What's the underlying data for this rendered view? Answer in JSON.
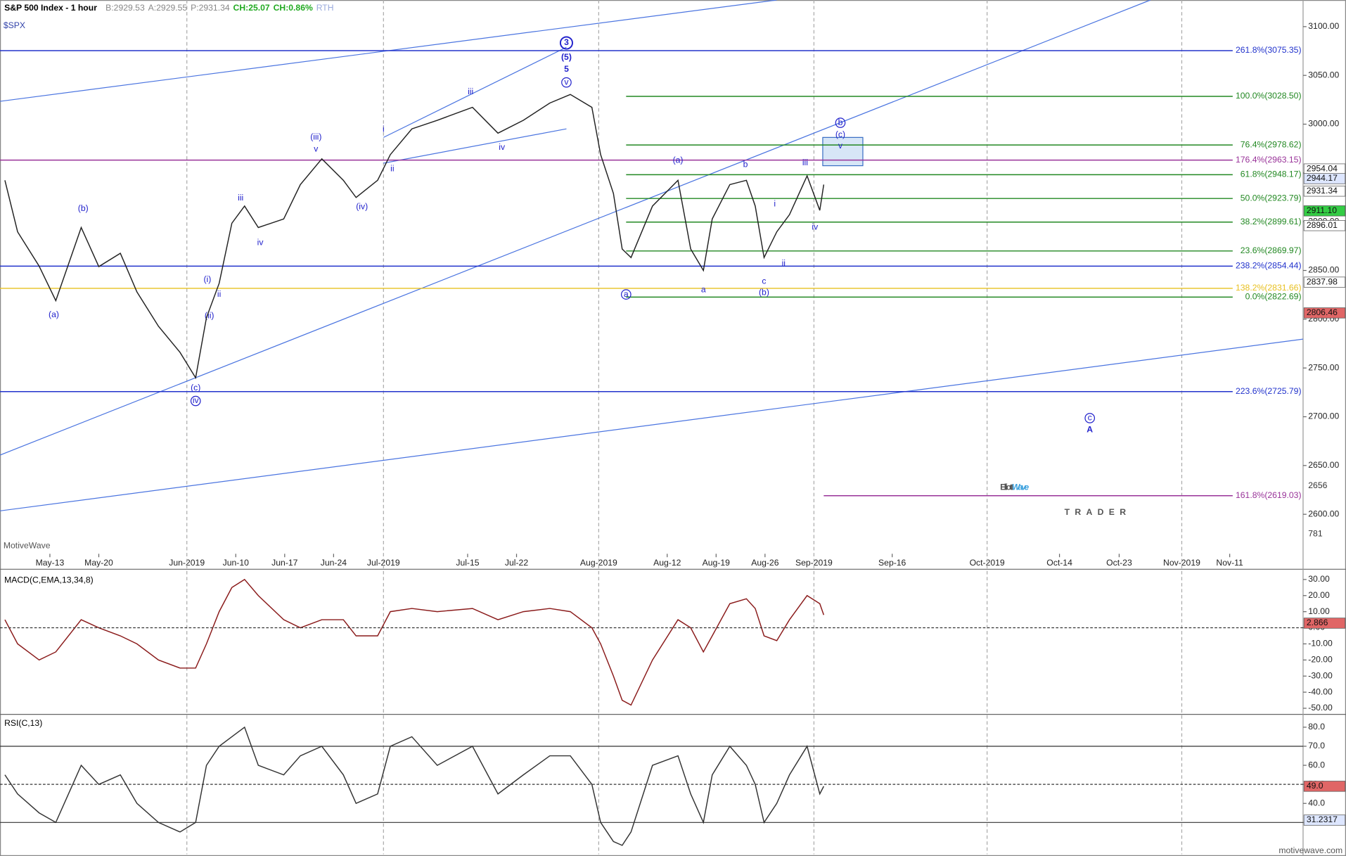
{
  "chart_data": [
    {
      "type": "line",
      "title": "S&P 500 Index - 1 hour",
      "symbol": "$SPX",
      "watermark": "MotiveWave",
      "quote": [
        {
          "text": "B:2929.53",
          "color": "#888888"
        },
        {
          "text": "A:2929.55",
          "color": "#888888"
        },
        {
          "text": "P:2931.34",
          "color": "#888888"
        },
        {
          "text": "CH:25.07",
          "color": "#22aa22"
        },
        {
          "text": "CH:0.86%",
          "color": "#22aa22"
        },
        {
          "text": "RTH",
          "color": "#99aadd"
        }
      ],
      "volume_labels": [
        "2656",
        "781"
      ],
      "color": "#222222",
      "x": [
        3.4,
        4.7,
        6.9,
        8.6,
        11.2,
        13.0,
        15.2,
        16.9,
        19.1,
        21.3,
        22.9,
        24.0,
        25.3,
        26.6,
        27.9,
        29.3,
        31.9,
        33.6,
        35.8,
        38.0,
        39.3,
        41.5,
        42.8,
        45.0,
        47.6,
        51.2,
        53.8,
        56.4,
        59.1,
        61.2,
        63.4,
        64.3,
        65.6,
        66.5,
        67.4,
        69.6,
        72.2,
        73.5,
        74.8,
        75.7,
        77.5,
        79.2,
        80.1,
        81.0,
        82.3,
        83.6,
        85.4,
        86.7,
        87.1
      ],
      "values": [
        2942.4,
        2889.6,
        2854.4,
        2819,
        2894,
        2854,
        2867.6,
        2828,
        2792.8,
        2766,
        2740,
        2801.6,
        2836.8,
        2898.4,
        2916,
        2894,
        2902.8,
        2938,
        2964.4,
        2942.4,
        2924.8,
        2942.4,
        2968.8,
        2995.2,
        3004,
        3017.3,
        2990.8,
        3004,
        3021.7,
        3030.5,
        3017.3,
        2968.8,
        2929,
        2872,
        2863.2,
        2916,
        2942.4,
        2872,
        2850,
        2902.8,
        2938,
        2942.4,
        2916,
        2863.2,
        2889.6,
        2907.2,
        2947,
        2911.6,
        2938
      ],
      "xlim": [
        2.9,
        136.1
      ],
      "ylim": [
        2559.5,
        3127.3
      ],
      "xticks": [
        {
          "value": 8.0,
          "label": "May-13"
        },
        {
          "value": 13.0,
          "label": "May-20"
        },
        {
          "value": 22.0,
          "label": "Jun-2019"
        },
        {
          "value": 27.0,
          "label": "Jun-10"
        },
        {
          "value": 32.0,
          "label": "Jun-17"
        },
        {
          "value": 37.0,
          "label": "Jun-24"
        },
        {
          "value": 42.1,
          "label": "Jul-2019"
        },
        {
          "value": 50.7,
          "label": "Jul-15"
        },
        {
          "value": 55.7,
          "label": "Jul-22"
        },
        {
          "value": 64.1,
          "label": "Aug-2019"
        },
        {
          "value": 71.1,
          "label": "Aug-12"
        },
        {
          "value": 76.1,
          "label": "Aug-19"
        },
        {
          "value": 81.1,
          "label": "Aug-26"
        },
        {
          "value": 86.1,
          "label": "Sep-2019"
        },
        {
          "value": 94.1,
          "label": "Sep-16"
        },
        {
          "value": 103.8,
          "label": "Oct-2019"
        },
        {
          "value": 111.2,
          "label": "Oct-14"
        },
        {
          "value": 117.3,
          "label": "Oct-23"
        },
        {
          "value": 123.7,
          "label": "Nov-2019"
        },
        {
          "value": 128.6,
          "label": "Nov-11"
        }
      ],
      "yticks": [
        {
          "value": 2600,
          "label": "2600.00"
        },
        {
          "value": 2650,
          "label": "2650.00"
        },
        {
          "value": 2700,
          "label": "2700.00"
        },
        {
          "value": 2750,
          "label": "2750.00"
        },
        {
          "value": 2800,
          "label": "2800.00"
        },
        {
          "value": 2850,
          "label": "2850.00"
        },
        {
          "value": 2900,
          "label": "2900.00"
        },
        {
          "value": 2950,
          "label": "2950.00"
        },
        {
          "value": 3000,
          "label": "3000.00"
        },
        {
          "value": 3050,
          "label": "3050.00"
        },
        {
          "value": 3100,
          "label": "3100.00"
        }
      ],
      "fib_levels": [
        {
          "label": "261.8%(3075.35)",
          "value": 3075.35,
          "color": "#2233cc"
        },
        {
          "label": "100.0%(3028.50)",
          "value": 3028.5,
          "color": "#228822",
          "x_start": 66.9
        },
        {
          "label": "76.4%(2978.62)",
          "value": 2978.62,
          "color": "#228822",
          "x_start": 66.9
        },
        {
          "label": "176.4%(2963.15)",
          "value": 2963.15,
          "color": "#993399"
        },
        {
          "label": "61.8%(2948.17)",
          "value": 2948.17,
          "color": "#228822",
          "x_start": 66.9
        },
        {
          "label": "50.0%(2923.79)",
          "value": 2923.79,
          "color": "#228822",
          "x_start": 66.9
        },
        {
          "label": "38.2%(2899.61)",
          "value": 2899.61,
          "color": "#228822",
          "x_start": 66.9
        },
        {
          "label": "23.6%(2869.97)",
          "value": 2869.97,
          "color": "#228822",
          "x_start": 66.9
        },
        {
          "label": "238.2%(2854.44)",
          "value": 2854.44,
          "color": "#2233cc"
        },
        {
          "label": "138.2%(2831.66)",
          "value": 2831.66,
          "color": "#e8c020"
        },
        {
          "label": "0.0%(2822.69)",
          "value": 2822.69,
          "color": "#228822",
          "x_start": 66.9
        },
        {
          "label": "223.6%(2725.79)",
          "value": 2725.79,
          "color": "#2233cc"
        },
        {
          "label": "161.8%(2619.03)",
          "value": 2619.03,
          "color": "#993399",
          "x_start": 87.1
        }
      ],
      "tags": [
        {
          "value": 2954.04,
          "color": "#ffffff"
        },
        {
          "value": 2944.17,
          "color": "#dde6ff"
        },
        {
          "value": 2931.34,
          "color": "#ffffff"
        },
        {
          "value": 2911.1,
          "label": "2911.10",
          "color": "#33cc44"
        },
        {
          "value": 2896.01,
          "color": "#ffffff"
        },
        {
          "value": 2837.98,
          "color": "#ffffff"
        },
        {
          "value": 2806.46,
          "color": "#e06666"
        }
      ],
      "waves": [
        {
          "text": "(a)",
          "x": 8.4,
          "y": 2804.2
        },
        {
          "text": "(b)",
          "x": 11.4,
          "y": 2913.4
        },
        {
          "text": "(c)",
          "x": 22.9,
          "y": 2729.4
        },
        {
          "text": "iv",
          "x": 22.9,
          "y": 2716.2,
          "circled": true
        },
        {
          "text": "(i)",
          "x": 24.1,
          "y": 2840.3
        },
        {
          "text": "(ii)",
          "x": 24.3,
          "y": 2803.3
        },
        {
          "text": "ii",
          "x": 25.3,
          "y": 2825.4
        },
        {
          "text": "iii",
          "x": 27.5,
          "y": 2924.0
        },
        {
          "text": "iv",
          "x": 29.5,
          "y": 2878.2
        },
        {
          "text": "(iii)",
          "x": 35.2,
          "y": 2986.4
        },
        {
          "text": "v",
          "x": 35.2,
          "y": 2974.1
        },
        {
          "text": "(iv)",
          "x": 39.9,
          "y": 2915.1
        },
        {
          "text": "i",
          "x": 42.1,
          "y": 2994.3
        },
        {
          "text": "ii",
          "x": 43.0,
          "y": 2953.9
        },
        {
          "text": "iii",
          "x": 51.0,
          "y": 3033.1
        },
        {
          "text": "iv",
          "x": 54.2,
          "y": 2975.9
        },
        {
          "text": "v",
          "x": 60.8,
          "y": 3042.8,
          "circled": true
        },
        {
          "text": "5",
          "x": 60.8,
          "y": 3055.9,
          "bold": true
        },
        {
          "text": "(5)",
          "x": 60.8,
          "y": 3068.3,
          "bold": true
        },
        {
          "text": "3",
          "x": 60.8,
          "y": 3083.3,
          "circled": true,
          "bold": true
        },
        {
          "text": "a",
          "x": 66.9,
          "y": 2825.4,
          "circled": true
        },
        {
          "text": "(a)",
          "x": 72.2,
          "y": 2962.7
        },
        {
          "text": "a",
          "x": 74.8,
          "y": 2829.8
        },
        {
          "text": "b",
          "x": 79.1,
          "y": 2958.3
        },
        {
          "text": "c",
          "x": 81.0,
          "y": 2838.6
        },
        {
          "text": "(b)",
          "x": 81.0,
          "y": 2827.1
        },
        {
          "text": "i",
          "x": 82.1,
          "y": 2917.8
        },
        {
          "text": "ii",
          "x": 83.0,
          "y": 2857.0
        },
        {
          "text": "iii",
          "x": 85.2,
          "y": 2960.0
        },
        {
          "text": "iv",
          "x": 86.2,
          "y": 2894.0
        },
        {
          "text": "v",
          "x": 88.8,
          "y": 2977.6
        },
        {
          "text": "(c)",
          "x": 88.8,
          "y": 2989.1
        },
        {
          "text": "b",
          "x": 88.8,
          "y": 3001.4,
          "circled": true
        },
        {
          "text": "c",
          "x": 114.3,
          "y": 2698.6,
          "circled": true
        },
        {
          "text": "A",
          "x": 114.3,
          "y": 2686.3,
          "bold": true
        }
      ],
      "trendlines": [
        [
          [
            2.9,
            2660.7
          ],
          [
            120.5,
            3127.3
          ]
        ],
        [
          [
            2.9,
            2603.5
          ],
          [
            136.1,
            2779.6
          ]
        ],
        [
          [
            2.9,
            3023.4
          ],
          [
            82.3,
            3127.3
          ]
        ],
        [
          [
            42.1,
            2986.4
          ],
          [
            60.8,
            3078.9
          ]
        ],
        [
          [
            42.1,
            2960.0
          ],
          [
            60.8,
            2995.2
          ]
        ]
      ],
      "box": [
        [
          87.0,
          2986.4
        ],
        [
          91.1,
          2957.4
        ]
      ]
    },
    {
      "type": "line",
      "title": "MACD(C,EMA,13,34,8)",
      "color": "#8a1a1a",
      "values": [
        5,
        -10,
        -20,
        -15,
        5,
        0,
        -5,
        -10,
        -20,
        -25,
        -25,
        -10,
        10,
        25,
        30,
        20,
        5,
        0,
        5,
        5,
        -5,
        -5,
        10,
        12,
        10,
        12,
        5,
        10,
        12,
        10,
        0,
        -10,
        -30,
        -45,
        -48,
        -20,
        5,
        0,
        -15,
        -5,
        15,
        18,
        12,
        -5,
        -8,
        5,
        20,
        15,
        8
      ],
      "ylim": [
        -52.7,
        35.3
      ],
      "yticks": [
        {
          "value": -50,
          "label": "-50.00"
        },
        {
          "value": -40,
          "label": "-40.00"
        },
        {
          "value": -30,
          "label": "-30.00"
        },
        {
          "value": -20,
          "label": "-20.00"
        },
        {
          "value": -10,
          "label": "-10.00"
        },
        {
          "value": 0,
          "label": "0.00"
        },
        {
          "value": 10,
          "label": "10.00"
        },
        {
          "value": 20,
          "label": "20.00"
        },
        {
          "value": 30,
          "label": "30.00"
        }
      ],
      "hlines": [
        {
          "value": 0,
          "dashed": true
        }
      ],
      "tags": [
        {
          "value": 2.866,
          "color": "#e06666"
        }
      ]
    },
    {
      "type": "line",
      "title": "RSI(C,13)",
      "color": "#333333",
      "values": [
        55,
        45,
        35,
        30,
        60,
        50,
        55,
        40,
        30,
        25,
        30,
        60,
        70,
        75,
        80,
        60,
        55,
        65,
        70,
        55,
        40,
        45,
        70,
        75,
        60,
        70,
        45,
        55,
        65,
        65,
        50,
        30,
        20,
        18,
        25,
        60,
        65,
        45,
        30,
        55,
        70,
        60,
        50,
        30,
        40,
        55,
        70,
        45,
        49
      ],
      "ylim": [
        13.3,
        85.4
      ],
      "yticks": [
        {
          "value": 30,
          "label": "30.0"
        },
        {
          "value": 40,
          "label": "40.0"
        },
        {
          "value": 50,
          "label": "50.0"
        },
        {
          "value": 60,
          "label": "60.0"
        },
        {
          "value": 70,
          "label": "70.0"
        },
        {
          "value": 80,
          "label": "80.0"
        }
      ],
      "hlines": [
        {
          "value": 70
        },
        {
          "value": 50,
          "dashed": true
        },
        {
          "value": 30
        }
      ],
      "tags": [
        {
          "value": 49,
          "label": "49.0",
          "color": "#e06666"
        },
        {
          "value": 31.2317,
          "color": "#dde6ff"
        }
      ]
    }
  ],
  "logo": {
    "part1": "Elliott",
    "part2": "Wave",
    "part3": "TRADER"
  },
  "footer": "motivewave.com"
}
